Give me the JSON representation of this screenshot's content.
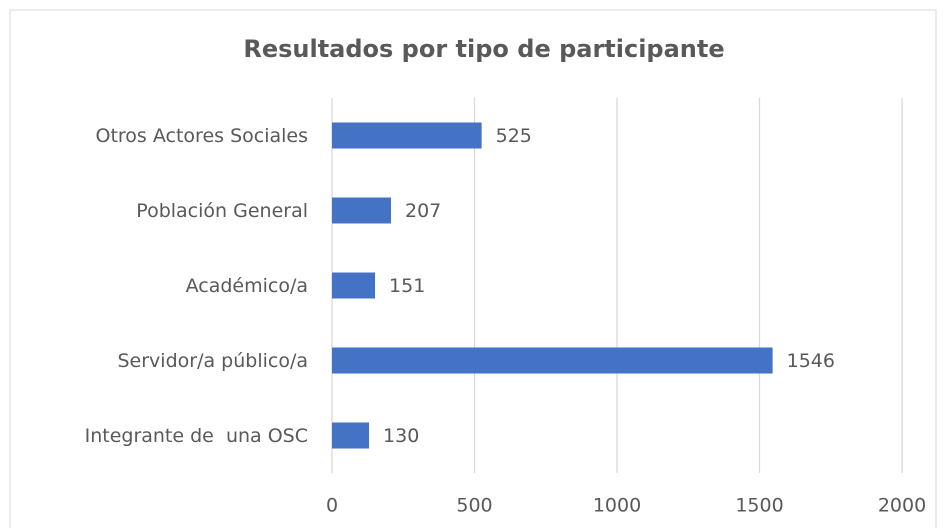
{
  "chart_data": {
    "type": "hbar",
    "title": "Resultados por tipo de participante",
    "categories": [
      "Otros Actores Sociales",
      "Población General",
      "Académico/a",
      "Servidor/a público/a",
      "Integrante de  una OSC"
    ],
    "values": [
      525,
      207,
      151,
      1546,
      130
    ],
    "color": "#4472c4",
    "xlim": [
      0,
      2000
    ],
    "xticks": [
      0,
      500,
      1000,
      1500,
      2000
    ],
    "grid": true
  }
}
